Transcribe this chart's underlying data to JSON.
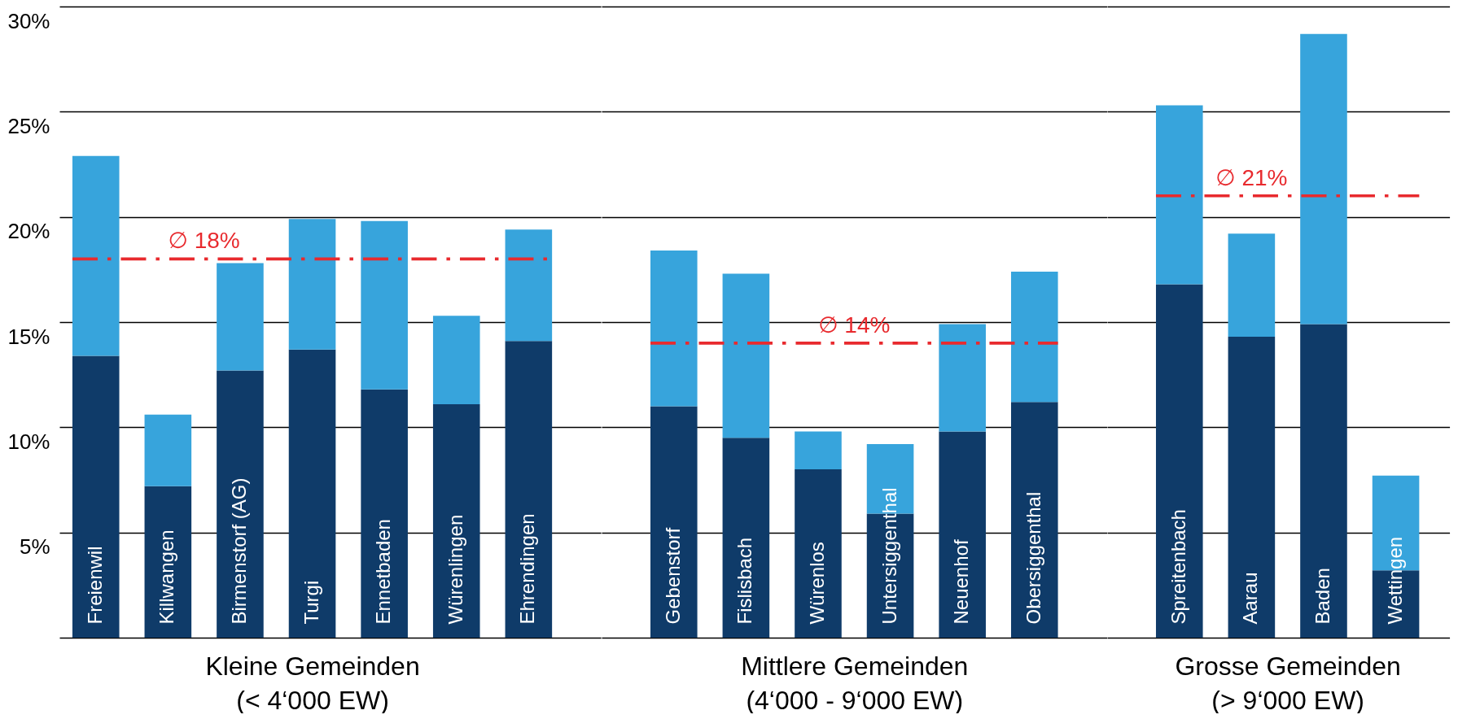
{
  "chart_data": [
    {
      "type": "bar",
      "stacked": true,
      "xlabel": "Kleine Gemeinden\n(< 4‘000 EW)",
      "categories": [
        "Freienwil",
        "Killwangen",
        "Birmenstorf (AG)",
        "Turgi",
        "Ennetbaden",
        "Würenlingen",
        "Ehrendingen"
      ],
      "series": [
        {
          "color": "#0f3b69",
          "values": [
            13.4,
            7.2,
            12.7,
            13.7,
            11.8,
            11.1,
            14.1
          ]
        },
        {
          "color": "#37a4dc",
          "values": [
            9.5,
            3.4,
            5.1,
            6.2,
            8.0,
            4.2,
            5.3
          ]
        }
      ],
      "ylim": [
        0,
        30
      ],
      "yticks": [
        {
          "value": 0,
          "label": null
        },
        {
          "value": 5,
          "label": "5%"
        },
        {
          "value": 10,
          "label": "10%"
        },
        {
          "value": 15,
          "label": "15%"
        },
        {
          "value": 20,
          "label": "20%"
        },
        {
          "value": 25,
          "label": "25%"
        },
        {
          "value": 30,
          "label": "30%"
        }
      ],
      "grid": "y",
      "ref_lines": [
        {
          "axis": "y",
          "value": 18,
          "label": "∅ 18%",
          "color": "#e82a2e",
          "line_style": "dashdot"
        }
      ]
    },
    {
      "type": "bar",
      "stacked": true,
      "xlabel": "Mittlere Gemeinden\n(4‘000 - 9‘000 EW)",
      "categories": [
        "Gebenstorf",
        "Fislisbach",
        "Würenlos",
        "Untersiggenthal",
        "Neuenhof",
        "Obersiggenthal"
      ],
      "series": [
        {
          "color": "#0f3b69",
          "values": [
            11.0,
            9.5,
            8.0,
            5.9,
            9.8,
            11.2
          ]
        },
        {
          "color": "#37a4dc",
          "values": [
            7.4,
            7.8,
            1.8,
            3.3,
            5.1,
            6.2
          ]
        }
      ],
      "ylim": [
        0,
        30
      ],
      "yticks": [
        0,
        5,
        10,
        15,
        20,
        25,
        30
      ],
      "grid": "y",
      "tick_labels": "x",
      "ref_lines": [
        {
          "axis": "y",
          "value": 14,
          "label": "∅ 14%",
          "color": "#e82a2e",
          "line_style": "dashdot"
        }
      ]
    },
    {
      "type": "bar",
      "stacked": true,
      "xlabel": "Grosse Gemeinden\n(> 9‘000 EW)",
      "categories": [
        "Spreitenbach",
        "Aarau",
        "Baden",
        "Wettingen"
      ],
      "series": [
        {
          "color": "#0f3b69",
          "values": [
            16.8,
            14.3,
            14.9,
            3.2
          ]
        },
        {
          "color": "#37a4dc",
          "values": [
            8.5,
            4.9,
            13.8,
            4.5
          ]
        }
      ],
      "ylim": [
        0,
        30
      ],
      "yticks": [
        0,
        5,
        10,
        15,
        20,
        25,
        30
      ],
      "grid": "y",
      "tick_labels": "x",
      "ref_lines": [
        {
          "axis": "y",
          "value": 21,
          "label": "∅ 21%",
          "color": "#e82a2e",
          "line_style": "dashdot"
        }
      ]
    }
  ]
}
